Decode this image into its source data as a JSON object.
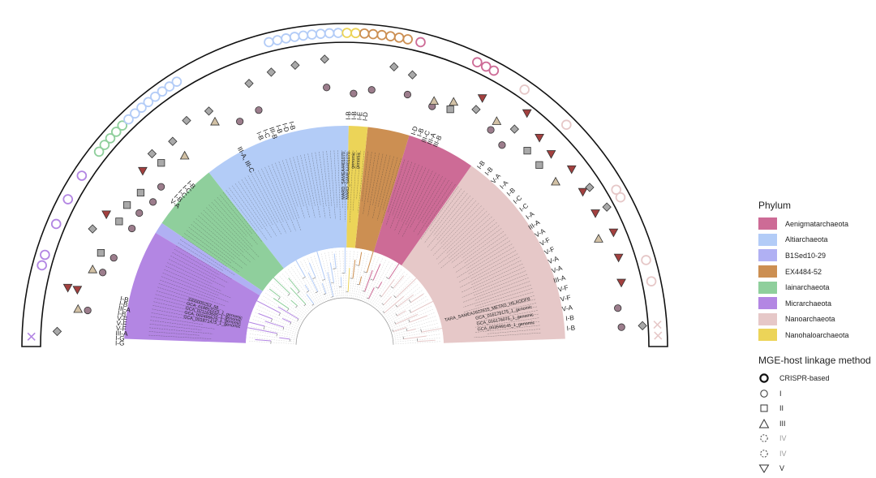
{
  "phylum_legend": {
    "title": "Phylum",
    "items": [
      {
        "label": "Aenigmatarchaeota",
        "color": "#cd6b96"
      },
      {
        "label": "Altiarchaeota",
        "color": "#b3ccf7"
      },
      {
        "label": "B1Sed10-29",
        "color": "#b0b0f3"
      },
      {
        "label": "EX4484-52",
        "color": "#cc8f52"
      },
      {
        "label": "Iainarchaeota",
        "color": "#8fcf9c"
      },
      {
        "label": "Micrarchaeota",
        "color": "#b386e3"
      },
      {
        "label": "Nanoarchaeota",
        "color": "#e6c8c8"
      },
      {
        "label": "Nanohaloarchaeota",
        "color": "#ecd458"
      }
    ]
  },
  "method_legend": {
    "title": "MGE-host linkage method",
    "items": [
      {
        "label": "CRISPR-based",
        "shape": "circle-bold"
      },
      {
        "label": "I",
        "shape": "circle"
      },
      {
        "label": "II",
        "shape": "square"
      },
      {
        "label": "III",
        "shape": "triangle"
      },
      {
        "label": "IV",
        "shape": "dashed"
      },
      {
        "label": "IV",
        "shape": "dashed"
      },
      {
        "label": "V",
        "shape": "triangle-down"
      }
    ]
  },
  "colors": {
    "outline": "#111111",
    "marker_gray": "#a9a9a9",
    "marker_purple": "#9c7d8c",
    "marker_tan": "#d2c1a5",
    "marker_red": "#a3403f"
  },
  "tip_labels": {
    "left_block": [
      "GCA_001871475_1_genomic",
      "GCA_002499575_1_genomic",
      "GCA_021163645_1_genomic",
      "GCA_018812225_1_genomic",
      "3300005253_58"
    ],
    "top_block": [
      "MARD_SAMEA4401070",
      "MARD_SAMEA4401070",
      "genomic",
      "genomic"
    ],
    "right_block": [
      "TARA_SAMEA2622615_METAG_HILAODFB",
      "GCA_016179175_1_genomic",
      "GCA_016176075_1_genomic",
      "GCA_003599145_1_genomic"
    ]
  },
  "crispr_labels": {
    "left": [
      "I-B",
      "I-B",
      "III-A",
      "I-B",
      "V-F",
      "V-F",
      "V-F",
      "III-A",
      "I-G",
      "I-G"
    ],
    "upper_left": [
      "V-A",
      "I-B",
      "I-C",
      "I-C",
      "I-B"
    ],
    "top_left": [
      "III-A, III-C"
    ],
    "top_mid": [
      "I-B",
      "I-C",
      "III-B",
      "I-B",
      "I-D",
      "I-B"
    ],
    "top": [
      "I-B",
      "I-B",
      "I-E",
      "I-D"
    ],
    "top_right": [
      "I-D",
      "I-B",
      "III-C",
      "III-A",
      "III-B"
    ],
    "right": [
      "I-B",
      "I-B",
      "V-A",
      "I-A",
      "I-B",
      "I-C",
      "I-C",
      "I-A",
      "III-A",
      "V-A",
      "V-F",
      "V-F",
      "V-A",
      "V-A",
      "III-A",
      "V-F",
      "V-F",
      "V-A",
      "I-B",
      "I-B"
    ]
  }
}
